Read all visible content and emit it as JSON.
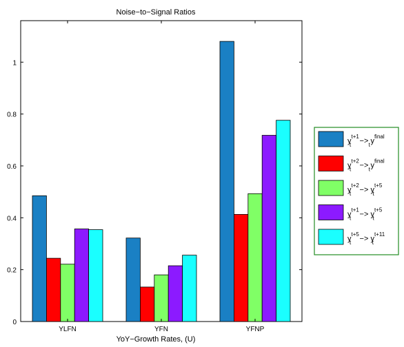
{
  "chart_data": {
    "type": "bar",
    "title": "Noise−to−Signal Ratios",
    "xlabel": "YoY−Growth Rates, (U)",
    "ylabel": "",
    "categories": [
      "YLFN",
      "YFN",
      "YFNP"
    ],
    "ylim": [
      0,
      1.16
    ],
    "yticks": [
      "0",
      "0.2",
      "0.4",
      "0.6",
      "0.8",
      "1"
    ],
    "ytick_values": [
      0,
      0.2,
      0.4,
      0.6,
      0.8,
      1.0
    ],
    "grid": false,
    "legend_position": "right-outside",
    "series": [
      {
        "name": "y_t^{t+1} -> y_t^{final}",
        "base": "y",
        "sub": "t",
        "sup": "t+1",
        "base2": "y",
        "sub2": "t",
        "sup2": "final",
        "color": "#1a80c4",
        "values": [
          0.485,
          0.322,
          1.08
        ]
      },
      {
        "name": "y_t^{t+2} -> y_t^{final}",
        "base": "y",
        "sub": "t",
        "sup": "t+2",
        "base2": "y",
        "sub2": "t",
        "sup2": "final",
        "color": "#ff0000",
        "values": [
          0.244,
          0.133,
          0.413
        ]
      },
      {
        "name": "y_t^{t+2} -> y_t^{t+5}",
        "base": "y",
        "sub": "t",
        "sup": "t+2",
        "base2": "y",
        "sub2": "t",
        "sup2": "t+5",
        "color": "#80ff66",
        "values": [
          0.221,
          0.18,
          0.493
        ]
      },
      {
        "name": "y_t^{t+1} -> y_t^{t+5}",
        "base": "y",
        "sub": "t",
        "sup": "t+1",
        "base2": "y",
        "sub2": "t",
        "sup2": "t+5",
        "color": "#8c1aff",
        "values": [
          0.357,
          0.215,
          0.718
        ]
      },
      {
        "name": "y_t^{t+5} -> y_t^{t+11}",
        "base": "y",
        "sub": "t",
        "sup": "t+5",
        "base2": "y",
        "sub2": "t",
        "sup2": "t+11",
        "color": "#1affff",
        "values": [
          0.354,
          0.256,
          0.776
        ]
      }
    ],
    "arrow_text": "−>",
    "legend_border_color": "#228B22"
  }
}
